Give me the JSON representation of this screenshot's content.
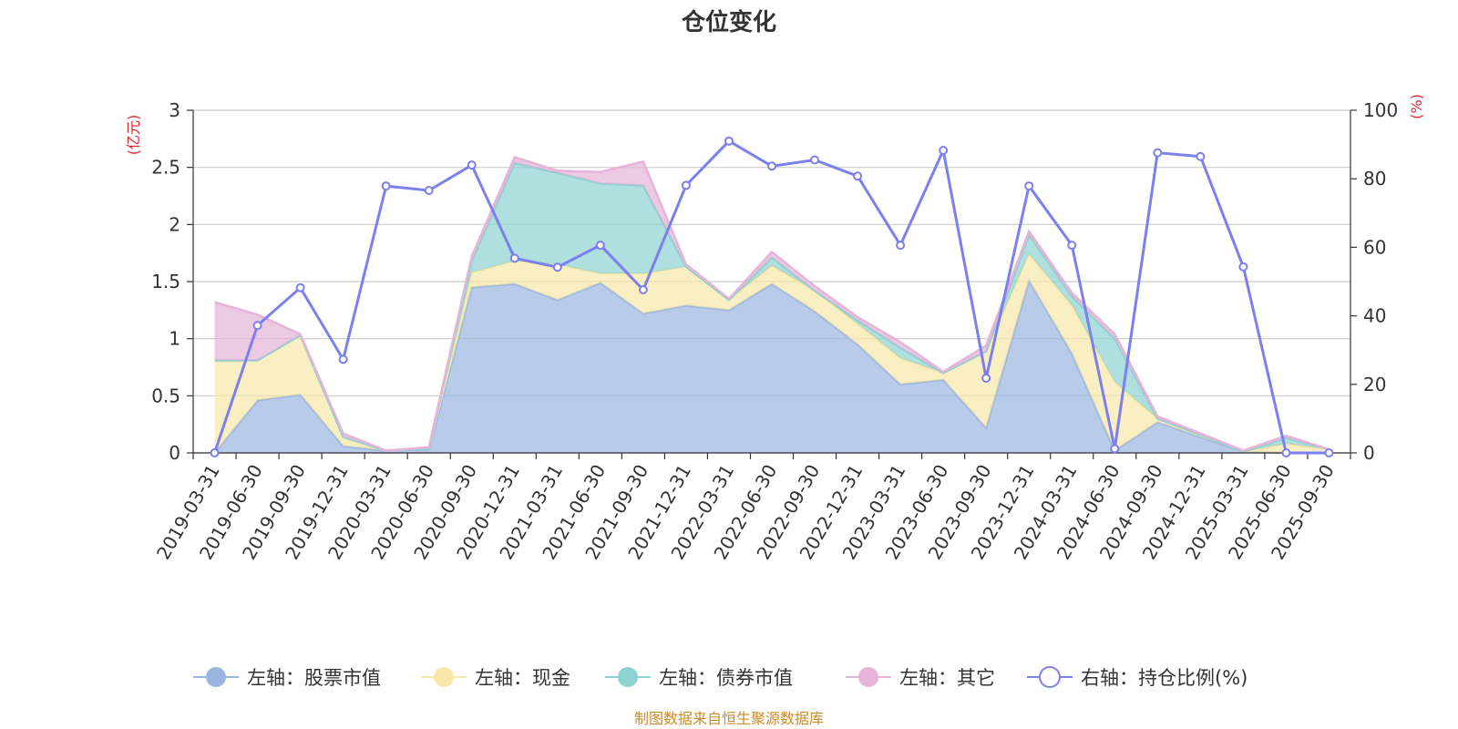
{
  "title": "仓位变化",
  "source": "制图数据来自恒生聚源数据库",
  "chart_data": {
    "type": "area",
    "title": "仓位变化",
    "left_axis": {
      "unit": "(亿元)",
      "ylim": [
        0,
        3
      ],
      "ticks": [
        "0",
        "0.5",
        "1",
        "1.5",
        "2",
        "2.5",
        "3"
      ]
    },
    "right_axis": {
      "unit": "(%)",
      "ylim": [
        0,
        100
      ],
      "ticks": [
        "0",
        "20",
        "40",
        "60",
        "80",
        "100"
      ]
    },
    "categories": [
      "2019-03-31",
      "2019-06-30",
      "2019-09-30",
      "2019-12-31",
      "2020-03-31",
      "2020-06-30",
      "2020-09-30",
      "2020-12-31",
      "2021-03-31",
      "2021-06-30",
      "2021-09-30",
      "2021-12-31",
      "2022-03-31",
      "2022-06-30",
      "2022-09-30",
      "2022-12-31",
      "2023-03-31",
      "2023-06-30",
      "2023-09-30",
      "2023-12-31",
      "2024-03-31",
      "2024-06-30",
      "2024-09-30",
      "2024-12-31",
      "2025-03-31",
      "2025-06-30",
      "2025-09-30"
    ],
    "series": [
      {
        "name": "左轴：股票市值",
        "axis": "left",
        "color": "#9ab5e0",
        "values": [
          0,
          0.46,
          0.51,
          0.06,
          0.02,
          0.03,
          1.45,
          1.48,
          1.34,
          1.49,
          1.22,
          1.29,
          1.25,
          1.48,
          1.24,
          0.95,
          0.6,
          0.64,
          0.22,
          1.51,
          0.87,
          0.02,
          0.27,
          0.14,
          0.01,
          0.0,
          0.0
        ]
      },
      {
        "name": "左轴：现金",
        "axis": "left",
        "color": "#f8e8a8",
        "values": [
          0.81,
          0.35,
          0.52,
          0.08,
          0.0,
          0.01,
          0.13,
          0.2,
          0.31,
          0.08,
          0.35,
          0.34,
          0.09,
          0.16,
          0.18,
          0.18,
          0.23,
          0.06,
          0.67,
          0.23,
          0.42,
          0.6,
          0.03,
          0.02,
          0.0,
          0.08,
          0.03
        ]
      },
      {
        "name": "左轴：债券市值",
        "axis": "left",
        "color": "#8dd1d1",
        "values": [
          0.0,
          0.0,
          0.0,
          0.0,
          0.0,
          0.0,
          0.1,
          0.86,
          0.8,
          0.79,
          0.77,
          0.0,
          0.0,
          0.07,
          0.0,
          0.03,
          0.09,
          0.0,
          0.0,
          0.17,
          0.08,
          0.38,
          0.0,
          0.0,
          0.0,
          0.05,
          0.0
        ]
      },
      {
        "name": "左轴：其它",
        "axis": "left",
        "color": "#e6b3d9",
        "values": [
          0.51,
          0.4,
          0.01,
          0.03,
          0.0,
          0.01,
          0.04,
          0.05,
          0.02,
          0.1,
          0.21,
          0.02,
          0.01,
          0.05,
          0.04,
          0.03,
          0.05,
          0.01,
          0.05,
          0.03,
          0.03,
          0.04,
          0.02,
          0.01,
          0.01,
          0.02,
          0.0
        ]
      },
      {
        "name": "右轴：持仓比例(%)",
        "axis": "right",
        "color": "#7b7ff0",
        "values": [
          0,
          37.2,
          48.2,
          27.3,
          77.9,
          76.6,
          84.0,
          56.8,
          54.2,
          60.6,
          47.6,
          78.1,
          91.0,
          83.7,
          85.5,
          80.8,
          60.6,
          88.3,
          21.8,
          77.9,
          60.6,
          1.2,
          87.6,
          86.5,
          54.3,
          0,
          0
        ]
      }
    ],
    "legend": "bottom"
  }
}
